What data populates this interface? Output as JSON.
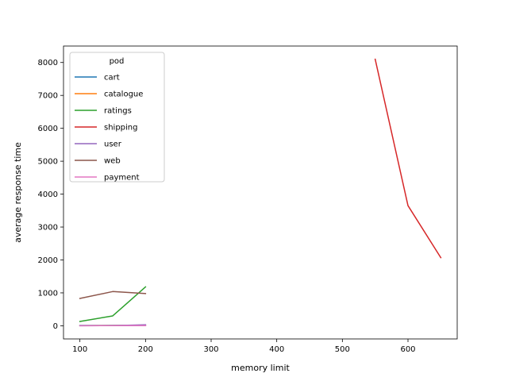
{
  "chart_data": {
    "type": "line",
    "title": "",
    "xlabel": "memory limit",
    "ylabel": "average response time",
    "xlim": [
      75,
      675
    ],
    "ylim": [
      -400,
      8500
    ],
    "xticks": [
      100,
      200,
      300,
      400,
      500,
      600
    ],
    "yticks": [
      0,
      1000,
      2000,
      3000,
      4000,
      5000,
      6000,
      7000,
      8000
    ],
    "grid": false,
    "legend": {
      "title": "pod",
      "placement": "top-left"
    },
    "series": [
      {
        "name": "cart",
        "color": "#1f77b4",
        "x": [
          100,
          150,
          200
        ],
        "y": [
          10,
          12,
          15
        ]
      },
      {
        "name": "catalogue",
        "color": "#ff7f0e",
        "x": [
          100,
          150,
          200
        ],
        "y": [
          5,
          8,
          10
        ]
      },
      {
        "name": "ratings",
        "color": "#2ca02c",
        "x": [
          100,
          150,
          200
        ],
        "y": [
          130,
          300,
          1180
        ]
      },
      {
        "name": "shipping",
        "color": "#d62728",
        "x": [
          550,
          600,
          650
        ],
        "y": [
          8100,
          3650,
          2070
        ]
      },
      {
        "name": "user",
        "color": "#9467bd",
        "x": [
          100,
          150,
          200
        ],
        "y": [
          0,
          5,
          30
        ]
      },
      {
        "name": "web",
        "color": "#8c564b",
        "x": [
          100,
          150,
          200
        ],
        "y": [
          830,
          1040,
          980
        ]
      },
      {
        "name": "payment",
        "color": "#e377c2",
        "x": [
          100,
          150,
          200
        ],
        "y": [
          2,
          3,
          5
        ]
      }
    ]
  }
}
